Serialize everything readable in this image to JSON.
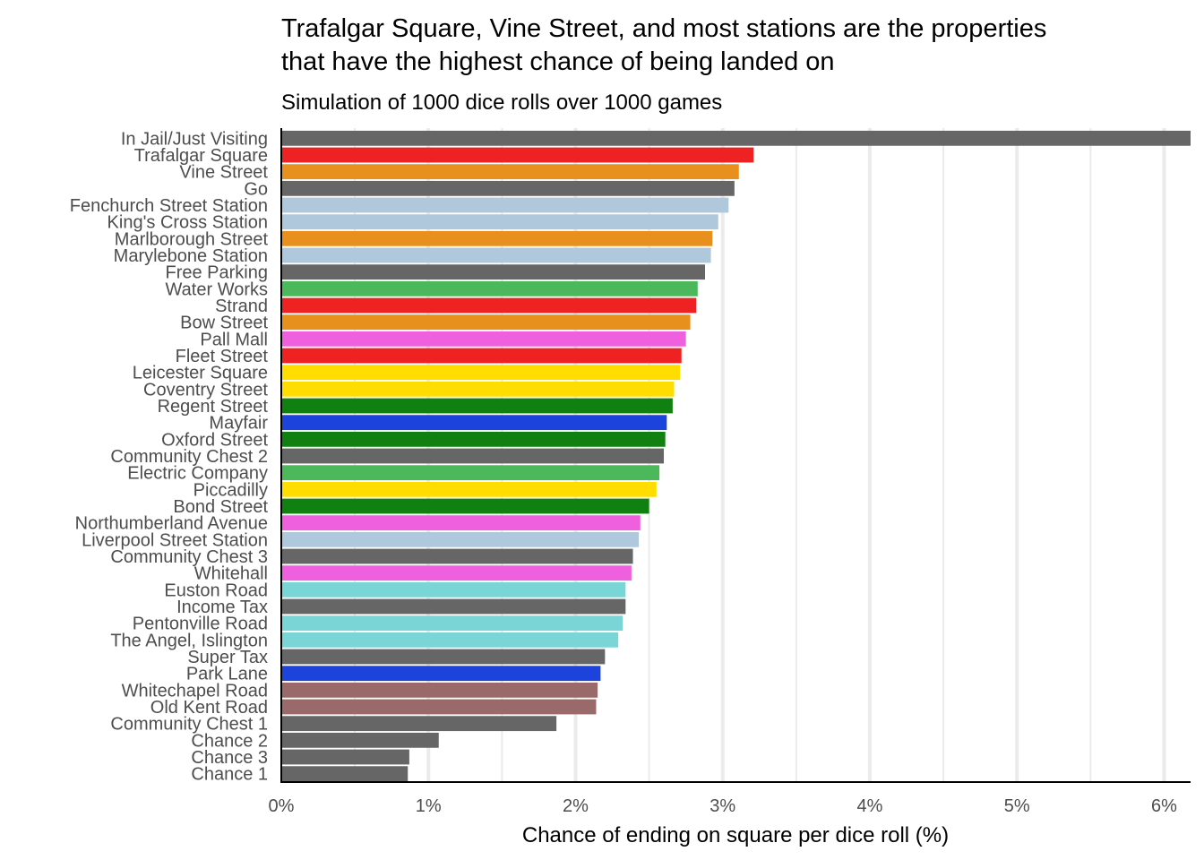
{
  "chart_data": {
    "type": "bar",
    "orientation": "horizontal",
    "title": "Trafalgar Square, Vine Street, and most stations are the properties that have the highest chance of being landed on",
    "title_lines": [
      "Trafalgar Square, Vine Street, and most stations are the properties",
      "that have the highest chance of being landed on"
    ],
    "subtitle": "Simulation of 1000 dice rolls over 1000 games",
    "xlabel": "Chance of ending on square per dice roll (%)",
    "ylabel": "",
    "xlim": [
      0,
      6.18
    ],
    "x_ticks": [
      0,
      1,
      2,
      3,
      4,
      5,
      6
    ],
    "x_tick_labels": [
      "0%",
      "1%",
      "2%",
      "3%",
      "4%",
      "5%",
      "6%"
    ],
    "grid": true,
    "legend": "none",
    "categories": [
      "In Jail/Just Visiting",
      "Trafalgar Square",
      "Vine Street",
      "Go",
      "Fenchurch Street Station",
      "King's Cross Station",
      "Marlborough Street",
      "Marylebone Station",
      "Free Parking",
      "Water Works",
      "Strand",
      "Bow Street",
      "Pall Mall",
      "Fleet Street",
      "Leicester Square",
      "Coventry Street",
      "Regent Street",
      "Mayfair",
      "Oxford Street",
      "Community Chest 2",
      "Electric Company",
      "Piccadilly",
      "Bond Street",
      "Northumberland Avenue",
      "Liverpool Street Station",
      "Community Chest 3",
      "Whitehall",
      "Euston Road",
      "Income Tax",
      "Pentonville Road",
      "The Angel, Islington",
      "Super Tax",
      "Park Lane",
      "Whitechapel Road",
      "Old Kent Road",
      "Community Chest 1",
      "Chance 2",
      "Chance 3",
      "Chance 1"
    ],
    "values": [
      6.18,
      3.21,
      3.11,
      3.08,
      3.04,
      2.97,
      2.93,
      2.92,
      2.88,
      2.83,
      2.82,
      2.78,
      2.75,
      2.72,
      2.71,
      2.67,
      2.66,
      2.62,
      2.61,
      2.6,
      2.57,
      2.55,
      2.5,
      2.44,
      2.43,
      2.39,
      2.38,
      2.34,
      2.34,
      2.32,
      2.29,
      2.2,
      2.17,
      2.15,
      2.14,
      1.87,
      1.07,
      0.87,
      0.86
    ],
    "colors": [
      "#666666",
      "#ee2222",
      "#e8901e",
      "#666666",
      "#b0c8dc",
      "#b0c8dc",
      "#e8901e",
      "#b0c8dc",
      "#666666",
      "#4cb85c",
      "#ee2222",
      "#e8901e",
      "#ee60dd",
      "#ee2222",
      "#ffdd00",
      "#ffdd00",
      "#108010",
      "#1c44dd",
      "#108010",
      "#666666",
      "#4cb85c",
      "#ffdd00",
      "#108010",
      "#ee60dd",
      "#b0c8dc",
      "#666666",
      "#ee60dd",
      "#7ad6d6",
      "#666666",
      "#7ad6d6",
      "#7ad6d6",
      "#666666",
      "#1c44dd",
      "#9a6a6a",
      "#9a6a6a",
      "#666666",
      "#666666",
      "#666666",
      "#666666"
    ]
  }
}
